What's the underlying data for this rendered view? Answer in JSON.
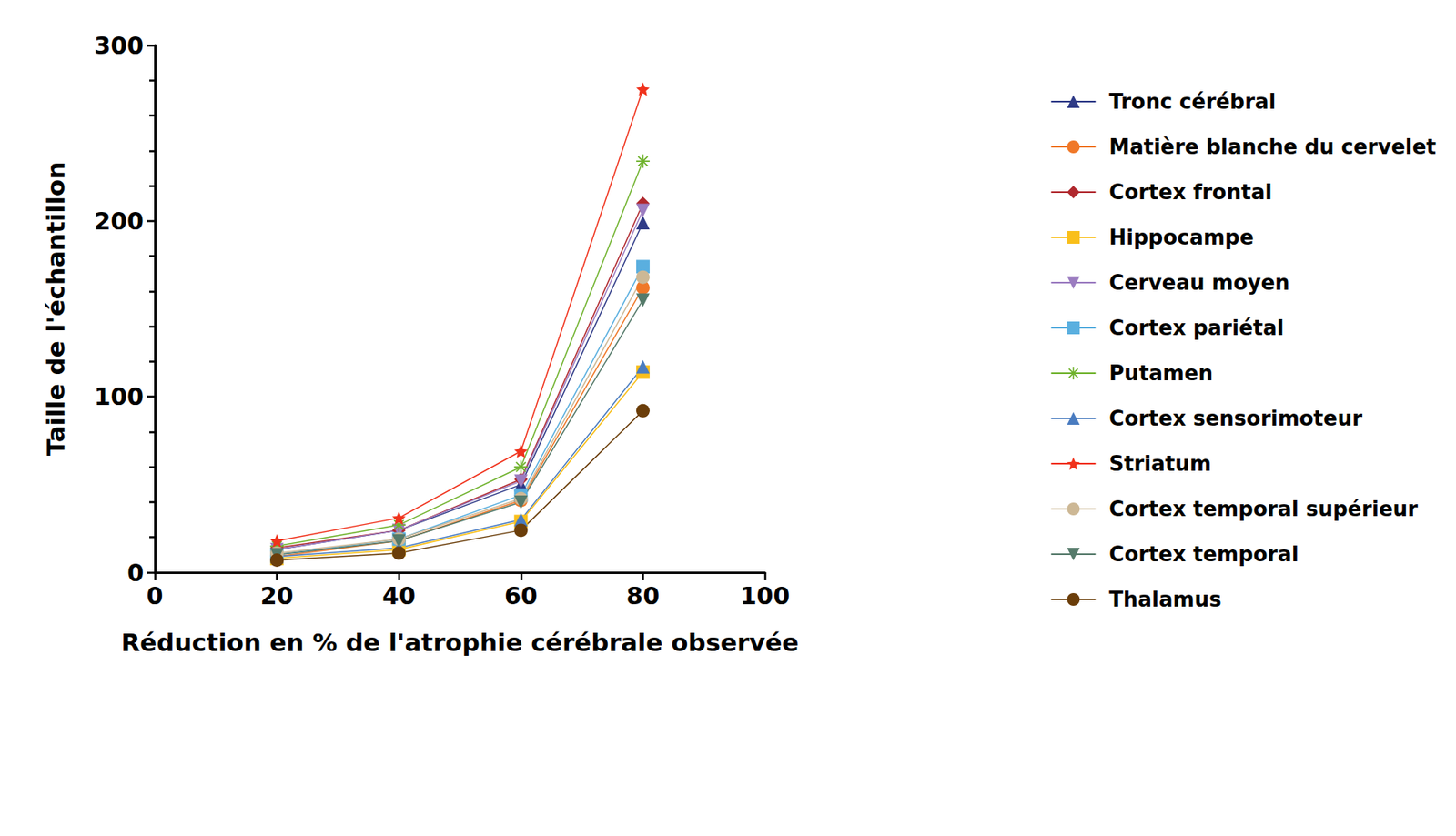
{
  "chart_data": {
    "type": "line",
    "x_label": "Réduction en % de l'atrophie cérébrale observée",
    "y_label": "Taille de l'échantillon",
    "x": [
      20,
      40,
      60,
      80
    ],
    "xlim": [
      0,
      100
    ],
    "xticks": [
      0,
      20,
      40,
      60,
      80,
      100
    ],
    "ylim": [
      0,
      300
    ],
    "yticks": [
      0,
      100,
      200,
      300
    ],
    "grid": false,
    "legend": "right",
    "series": [
      {
        "name": "Tronc cérébral",
        "color": "#2e3a87",
        "marker": "triangle",
        "values": [
          13,
          24,
          50,
          199
        ]
      },
      {
        "name": "Matière blanche du cervelet",
        "color": "#f07828",
        "marker": "circle",
        "values": [
          9,
          18,
          41,
          162
        ]
      },
      {
        "name": "Cortex frontal",
        "color": "#b0282e",
        "marker": "diamond",
        "values": [
          14,
          24,
          53,
          210
        ]
      },
      {
        "name": "Hippocampe",
        "color": "#f9bf1b",
        "marker": "square",
        "values": [
          8,
          13,
          29,
          114
        ]
      },
      {
        "name": "Cerveau moyen",
        "color": "#9b7cc0",
        "marker": "triangle_down",
        "values": [
          13,
          24,
          52,
          206
        ]
      },
      {
        "name": "Cortex pariétal",
        "color": "#5aafdf",
        "marker": "square",
        "values": [
          10,
          19,
          44,
          174
        ]
      },
      {
        "name": "Putamen",
        "color": "#6fb22c",
        "marker": "asterisk",
        "values": [
          15,
          27,
          60,
          234
        ]
      },
      {
        "name": "Cortex sensorimoteur",
        "color": "#4a7cc0",
        "marker": "triangle",
        "values": [
          9,
          14,
          30,
          117
        ]
      },
      {
        "name": "Striatum",
        "color": "#f0321c",
        "marker": "star",
        "values": [
          18,
          31,
          69,
          275
        ]
      },
      {
        "name": "Cortex temporal supérieur",
        "color": "#cdb895",
        "marker": "circle",
        "values": [
          11,
          19,
          42,
          168
        ]
      },
      {
        "name": "Cortex temporal",
        "color": "#557a6a",
        "marker": "triangle_down",
        "values": [
          10,
          18,
          40,
          155
        ]
      },
      {
        "name": "Thalamus",
        "color": "#6b3e0a",
        "marker": "circle",
        "values": [
          7,
          11,
          24,
          92
        ]
      }
    ]
  }
}
